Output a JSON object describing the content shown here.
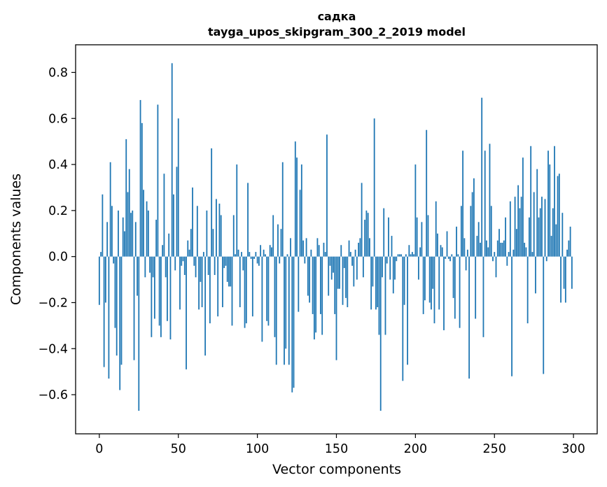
{
  "chart_data": {
    "type": "bar",
    "title": "садка",
    "subtitle": "tayga_upos_skipgram_300_2_2019 model",
    "xlabel": "Vector components",
    "ylabel": "Components values",
    "xlim": [
      -15,
      315
    ],
    "ylim": [
      -0.77,
      0.92
    ],
    "x_ticks": [
      0,
      50,
      100,
      150,
      200,
      250,
      300
    ],
    "y_ticks": [
      -0.6,
      -0.4,
      -0.2,
      0.0,
      0.2,
      0.4,
      0.6,
      0.8
    ],
    "y_tick_labels": [
      "−0.6",
      "−0.4",
      "−0.2",
      "0.0",
      "0.2",
      "0.4",
      "0.6",
      "0.8"
    ],
    "bar_color": "#1f77b4",
    "grid": false,
    "values": [
      -0.21,
      0.02,
      0.27,
      -0.48,
      -0.2,
      0.15,
      -0.53,
      0.41,
      0.22,
      -0.03,
      -0.31,
      -0.43,
      0.2,
      -0.58,
      -0.47,
      0.17,
      0.11,
      0.51,
      0.28,
      0.38,
      0.19,
      0.2,
      -0.45,
      0.15,
      -0.17,
      -0.67,
      0.68,
      0.58,
      0.29,
      -0.09,
      0.24,
      0.2,
      -0.07,
      -0.35,
      -0.09,
      -0.27,
      0.16,
      0.66,
      -0.3,
      -0.35,
      0.05,
      0.36,
      -0.09,
      -0.28,
      0.1,
      -0.36,
      0.84,
      0.27,
      -0.06,
      0.39,
      0.6,
      -0.23,
      -0.04,
      -0.02,
      -0.08,
      -0.49,
      0.07,
      0.03,
      0.12,
      0.3,
      -0.04,
      -0.09,
      0.22,
      -0.23,
      -0.11,
      -0.22,
      0.02,
      -0.43,
      0.2,
      -0.08,
      -0.29,
      0.47,
      0.12,
      -0.08,
      0.25,
      -0.26,
      0.23,
      0.18,
      -0.22,
      -0.05,
      -0.04,
      -0.11,
      -0.13,
      -0.13,
      -0.3,
      0.18,
      0.01,
      0.4,
      0.03,
      -0.22,
      0.02,
      -0.06,
      -0.31,
      -0.29,
      0.32,
      0.02,
      -0.01,
      -0.26,
      -0.01,
      0.02,
      -0.03,
      -0.04,
      0.05,
      -0.37,
      0.03,
      0.01,
      -0.28,
      -0.3,
      0.05,
      0.04,
      0.18,
      -0.35,
      -0.47,
      0.14,
      -0.03,
      0.12,
      0.41,
      -0.47,
      -0.4,
      0.01,
      -0.47,
      0.08,
      -0.59,
      -0.57,
      0.5,
      0.43,
      -0.24,
      0.29,
      0.4,
      0.07,
      -0.03,
      0.08,
      -0.17,
      -0.2,
      0.03,
      -0.25,
      -0.36,
      -0.33,
      0.08,
      0.05,
      -0.25,
      -0.34,
      0.06,
      0.02,
      0.53,
      -0.17,
      -0.04,
      -0.1,
      -0.07,
      -0.25,
      -0.45,
      -0.14,
      -0.14,
      0.05,
      -0.21,
      -0.05,
      -0.18,
      -0.22,
      0.07,
      0.02,
      -0.04,
      -0.13,
      0.03,
      -0.1,
      0.06,
      0.08,
      0.32,
      -0.09,
      0.16,
      0.2,
      0.19,
      0.08,
      -0.23,
      -0.13,
      0.6,
      -0.23,
      -0.22,
      -0.34,
      -0.67,
      -0.09,
      0.21,
      -0.34,
      -0.03,
      0.17,
      -0.1,
      0.09,
      -0.16,
      -0.1,
      -0.02,
      0.01,
      0.01,
      0.01,
      -0.54,
      -0.21,
      0.01,
      -0.47,
      0.05,
      0.01,
      0.02,
      0.01,
      0.4,
      0.17,
      -0.1,
      0.04,
      0.15,
      -0.25,
      -0.19,
      0.55,
      0.18,
      -0.2,
      -0.23,
      -0.14,
      -0.29,
      0.24,
      0.1,
      -0.23,
      0.05,
      0.04,
      -0.32,
      -0.01,
      0.11,
      -0.01,
      -0.02,
      0.01,
      -0.18,
      -0.27,
      0.13,
      0.01,
      -0.31,
      0.22,
      0.46,
      0.08,
      -0.06,
      0.03,
      -0.53,
      0.22,
      0.28,
      0.34,
      -0.27,
      0.09,
      0.15,
      0.06,
      0.69,
      -0.35,
      0.46,
      0.07,
      0.04,
      0.49,
      0.22,
      -0.02,
      0.02,
      -0.09,
      0.07,
      0.12,
      0.06,
      0.06,
      0.07,
      0.17,
      -0.04,
      0.02,
      0.24,
      -0.52,
      0.03,
      0.26,
      0.12,
      0.31,
      0.21,
      0.26,
      0.43,
      0.06,
      0.04,
      -0.29,
      0.17,
      0.48,
      0.02,
      0.28,
      -0.16,
      0.38,
      0.17,
      0.21,
      0.26,
      -0.51,
      0.25,
      -0.02,
      0.46,
      0.4,
      0.09,
      0.21,
      0.48,
      0.14,
      0.35,
      0.36,
      -0.2,
      0.19,
      -0.14,
      -0.2,
      0.03,
      0.07,
      0.13,
      -0.14
    ]
  }
}
